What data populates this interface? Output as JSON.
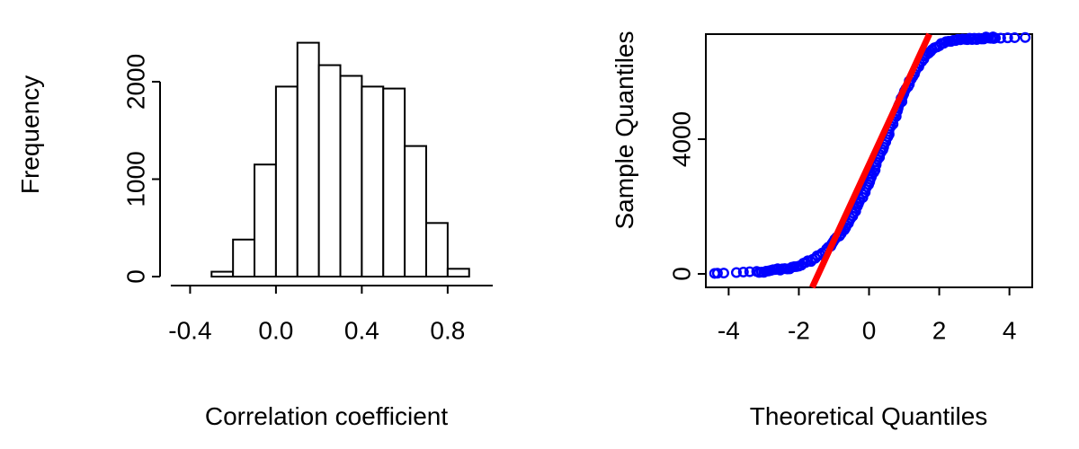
{
  "figure": {
    "background": "#FFFFFF",
    "foreground": "#000000",
    "panels": [
      "histogram",
      "normal-qq-plot"
    ]
  },
  "chart_data": [
    {
      "type": "bar",
      "subtype": "histogram",
      "title": "",
      "xlabel": "Correlation coefficient",
      "ylabel": "Frequency",
      "bin_start": -0.3,
      "bin_width": 0.1,
      "bin_edges": [
        -0.3,
        -0.2,
        -0.1,
        0.0,
        0.1,
        0.2,
        0.3,
        0.4,
        0.5,
        0.6,
        0.7,
        0.8,
        0.9
      ],
      "counts": [
        50,
        380,
        1150,
        1950,
        2400,
        2170,
        2060,
        1950,
        1930,
        1340,
        550,
        80
      ],
      "x_ticks": {
        "values": [
          -0.4,
          0.0,
          0.4,
          0.8
        ],
        "labels": [
          "-0.4",
          "0.0",
          "0.4",
          "0.8"
        ]
      },
      "y_ticks": {
        "values": [
          0,
          1000,
          2000
        ],
        "labels": [
          "0",
          "1000",
          "2000"
        ]
      },
      "xlim": [
        -0.54,
        1.01
      ],
      "ylim": [
        0,
        2470
      ],
      "grid": false,
      "style": {
        "bar_fill": "#FFFFFF",
        "stroke": "#000000"
      }
    },
    {
      "type": "scatter",
      "subtype": "qqnorm",
      "title": "",
      "xlabel": "Theoretical Quantiles",
      "ylabel": "Sample Quantiles",
      "x_ticks": {
        "values": [
          -4,
          -2,
          0,
          2,
          4
        ],
        "labels": [
          "-4",
          "-2",
          "0",
          "2",
          "4"
        ]
      },
      "y_ticks": {
        "values": [
          0,
          4000
        ],
        "labels": [
          "0",
          "4000"
        ]
      },
      "xlim": [
        -4.65,
        4.65
      ],
      "ylim": [
        -400,
        7120
      ],
      "grid": false,
      "point_color": "#0000FF",
      "curve": [
        [
          -3.2,
          60
        ],
        [
          -3.0,
          75
        ],
        [
          -2.8,
          95
        ],
        [
          -2.6,
          120
        ],
        [
          -2.4,
          150
        ],
        [
          -2.2,
          195
        ],
        [
          -2.0,
          250
        ],
        [
          -1.8,
          330
        ],
        [
          -1.6,
          430
        ],
        [
          -1.4,
          560
        ],
        [
          -1.2,
          730
        ],
        [
          -1.0,
          940
        ],
        [
          -0.8,
          1200
        ],
        [
          -0.6,
          1510
        ],
        [
          -0.4,
          1870
        ],
        [
          -0.2,
          2280
        ],
        [
          0.0,
          2740
        ],
        [
          0.2,
          3240
        ],
        [
          0.4,
          3770
        ],
        [
          0.6,
          4310
        ],
        [
          0.8,
          4840
        ],
        [
          1.0,
          5340
        ],
        [
          1.2,
          5790
        ],
        [
          1.4,
          6170
        ],
        [
          1.6,
          6460
        ],
        [
          1.8,
          6660
        ],
        [
          2.0,
          6790
        ],
        [
          2.2,
          6870
        ],
        [
          2.4,
          6920
        ],
        [
          2.6,
          6950
        ],
        [
          2.8,
          6970
        ],
        [
          3.0,
          6985
        ],
        [
          3.2,
          6995
        ],
        [
          3.4,
          7000
        ],
        [
          3.6,
          7005
        ]
      ],
      "tail_points": [
        [
          -4.4,
          15
        ],
        [
          -4.32,
          20
        ],
        [
          -4.14,
          25
        ],
        [
          -3.78,
          40
        ],
        [
          -3.58,
          55
        ],
        [
          -3.4,
          65
        ],
        [
          3.55,
          6990
        ],
        [
          3.75,
          7000
        ],
        [
          3.95,
          7010
        ],
        [
          4.15,
          7015
        ],
        [
          4.45,
          7020
        ]
      ],
      "ref_line": {
        "from": [
          -1.62,
          -400
        ],
        "to": [
          1.72,
          7120
        ],
        "color": "#FF0000"
      }
    }
  ]
}
